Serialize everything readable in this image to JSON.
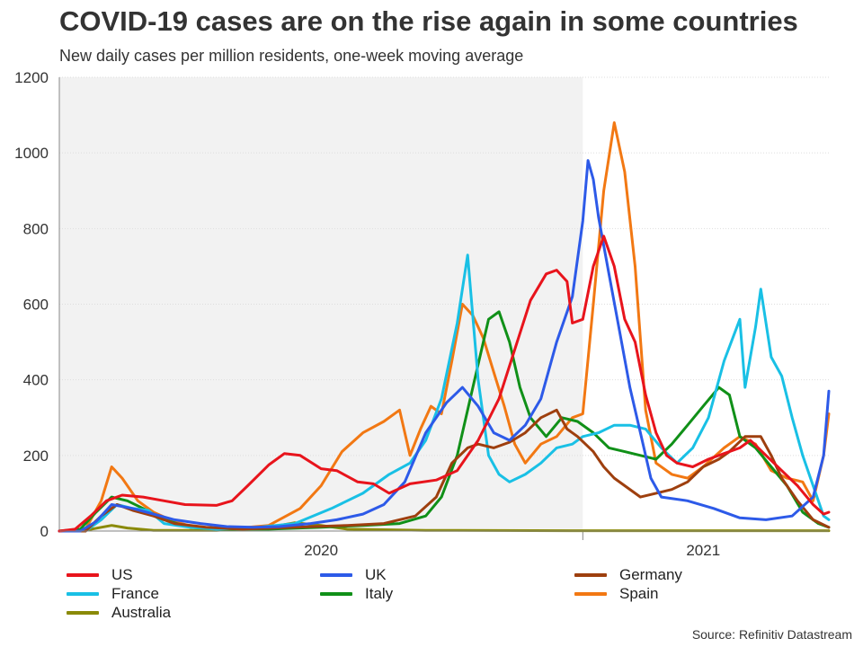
{
  "title": "COVID-19 cases are on the rise again in some countries",
  "subtitle": "New daily cases per million residents, one-week moving average",
  "source": "Source: Refinitiv Datastream",
  "chart_data": {
    "type": "line",
    "title": "COVID-19 cases are on the rise again in some countries",
    "subtitle": "New daily cases per million residents, one-week moving average",
    "ylabel": "",
    "xlabel": "",
    "ylim": [
      0,
      1200
    ],
    "yticks": [
      0,
      200,
      400,
      600,
      800,
      1000,
      1200
    ],
    "ytick_labels": [
      "0",
      "200",
      "400",
      "600",
      "800",
      "1000",
      "1200"
    ],
    "xlim": [
      2020.0,
      2021.47
    ],
    "xtick_labels": [
      {
        "label": "2020",
        "x": 2020.5
      },
      {
        "label": "2021",
        "x": 2021.23
      }
    ],
    "year_boundary_x": 2021.0,
    "shaded_region": [
      2020.0,
      2021.0
    ],
    "legend_position": "bottom",
    "series": [
      {
        "name": "US",
        "color": "#e8141c",
        "points": [
          [
            2020.0,
            0
          ],
          [
            2020.03,
            5
          ],
          [
            2020.06,
            40
          ],
          [
            2020.09,
            80
          ],
          [
            2020.12,
            95
          ],
          [
            2020.16,
            90
          ],
          [
            2020.2,
            80
          ],
          [
            2020.24,
            70
          ],
          [
            2020.3,
            68
          ],
          [
            2020.33,
            80
          ],
          [
            2020.36,
            120
          ],
          [
            2020.4,
            175
          ],
          [
            2020.43,
            205
          ],
          [
            2020.46,
            200
          ],
          [
            2020.5,
            165
          ],
          [
            2020.53,
            160
          ],
          [
            2020.57,
            130
          ],
          [
            2020.6,
            125
          ],
          [
            2020.63,
            100
          ],
          [
            2020.67,
            125
          ],
          [
            2020.72,
            135
          ],
          [
            2020.76,
            160
          ],
          [
            2020.8,
            240
          ],
          [
            2020.84,
            350
          ],
          [
            2020.87,
            480
          ],
          [
            2020.9,
            610
          ],
          [
            2020.93,
            680
          ],
          [
            2020.95,
            690
          ],
          [
            2020.97,
            660
          ],
          [
            2020.98,
            550
          ],
          [
            2021.0,
            560
          ],
          [
            2021.02,
            700
          ],
          [
            2021.04,
            780
          ],
          [
            2021.06,
            700
          ],
          [
            2021.08,
            560
          ],
          [
            2021.1,
            500
          ],
          [
            2021.12,
            360
          ],
          [
            2021.14,
            260
          ],
          [
            2021.16,
            200
          ],
          [
            2021.18,
            180
          ],
          [
            2021.21,
            170
          ],
          [
            2021.24,
            190
          ],
          [
            2021.27,
            205
          ],
          [
            2021.3,
            220
          ],
          [
            2021.32,
            240
          ],
          [
            2021.35,
            200
          ],
          [
            2021.38,
            160
          ],
          [
            2021.41,
            120
          ],
          [
            2021.44,
            70
          ],
          [
            2021.46,
            45
          ],
          [
            2021.47,
            50
          ]
        ]
      },
      {
        "name": "UK",
        "color": "#2d5ae8",
        "points": [
          [
            2020.0,
            0
          ],
          [
            2020.04,
            0
          ],
          [
            2020.07,
            25
          ],
          [
            2020.1,
            70
          ],
          [
            2020.14,
            60
          ],
          [
            2020.18,
            45
          ],
          [
            2020.22,
            30
          ],
          [
            2020.27,
            20
          ],
          [
            2020.32,
            12
          ],
          [
            2020.37,
            10
          ],
          [
            2020.42,
            12
          ],
          [
            2020.48,
            20
          ],
          [
            2020.53,
            30
          ],
          [
            2020.58,
            45
          ],
          [
            2020.62,
            70
          ],
          [
            2020.66,
            130
          ],
          [
            2020.7,
            260
          ],
          [
            2020.74,
            340
          ],
          [
            2020.77,
            380
          ],
          [
            2020.8,
            330
          ],
          [
            2020.83,
            260
          ],
          [
            2020.86,
            240
          ],
          [
            2020.89,
            280
          ],
          [
            2020.92,
            350
          ],
          [
            2020.95,
            500
          ],
          [
            2020.98,
            620
          ],
          [
            2021.0,
            820
          ],
          [
            2021.01,
            980
          ],
          [
            2021.02,
            930
          ],
          [
            2021.03,
            830
          ],
          [
            2021.05,
            680
          ],
          [
            2021.07,
            530
          ],
          [
            2021.09,
            380
          ],
          [
            2021.11,
            260
          ],
          [
            2021.13,
            140
          ],
          [
            2021.15,
            90
          ],
          [
            2021.2,
            80
          ],
          [
            2021.25,
            60
          ],
          [
            2021.3,
            35
          ],
          [
            2021.35,
            30
          ],
          [
            2021.4,
            40
          ],
          [
            2021.44,
            90
          ],
          [
            2021.46,
            200
          ],
          [
            2021.47,
            370
          ]
        ]
      },
      {
        "name": "Germany",
        "color": "#9e3f0e",
        "points": [
          [
            2020.0,
            0
          ],
          [
            2020.05,
            0
          ],
          [
            2020.08,
            40
          ],
          [
            2020.11,
            70
          ],
          [
            2020.14,
            55
          ],
          [
            2020.18,
            40
          ],
          [
            2020.22,
            20
          ],
          [
            2020.28,
            10
          ],
          [
            2020.35,
            5
          ],
          [
            2020.45,
            10
          ],
          [
            2020.55,
            15
          ],
          [
            2020.62,
            20
          ],
          [
            2020.68,
            40
          ],
          [
            2020.72,
            90
          ],
          [
            2020.75,
            180
          ],
          [
            2020.78,
            220
          ],
          [
            2020.8,
            230
          ],
          [
            2020.83,
            220
          ],
          [
            2020.86,
            235
          ],
          [
            2020.89,
            260
          ],
          [
            2020.92,
            300
          ],
          [
            2020.95,
            320
          ],
          [
            2020.97,
            270
          ],
          [
            2020.99,
            250
          ],
          [
            2021.02,
            210
          ],
          [
            2021.04,
            170
          ],
          [
            2021.06,
            140
          ],
          [
            2021.08,
            120
          ],
          [
            2021.11,
            90
          ],
          [
            2021.14,
            100
          ],
          [
            2021.17,
            110
          ],
          [
            2021.2,
            130
          ],
          [
            2021.23,
            170
          ],
          [
            2021.26,
            190
          ],
          [
            2021.28,
            210
          ],
          [
            2021.31,
            250
          ],
          [
            2021.34,
            250
          ],
          [
            2021.36,
            200
          ],
          [
            2021.38,
            140
          ],
          [
            2021.41,
            80
          ],
          [
            2021.44,
            30
          ],
          [
            2021.47,
            10
          ]
        ]
      },
      {
        "name": "France",
        "color": "#19c0e5",
        "points": [
          [
            2020.0,
            0
          ],
          [
            2020.05,
            0
          ],
          [
            2020.08,
            30
          ],
          [
            2020.11,
            70
          ],
          [
            2020.14,
            60
          ],
          [
            2020.17,
            55
          ],
          [
            2020.2,
            20
          ],
          [
            2020.25,
            10
          ],
          [
            2020.3,
            5
          ],
          [
            2020.38,
            10
          ],
          [
            2020.45,
            20
          ],
          [
            2020.52,
            60
          ],
          [
            2020.58,
            100
          ],
          [
            2020.63,
            150
          ],
          [
            2020.67,
            180
          ],
          [
            2020.7,
            240
          ],
          [
            2020.73,
            350
          ],
          [
            2020.76,
            550
          ],
          [
            2020.78,
            730
          ],
          [
            2020.8,
            400
          ],
          [
            2020.82,
            200
          ],
          [
            2020.84,
            150
          ],
          [
            2020.86,
            130
          ],
          [
            2020.89,
            150
          ],
          [
            2020.92,
            180
          ],
          [
            2020.95,
            220
          ],
          [
            2020.98,
            230
          ],
          [
            2021.0,
            250
          ],
          [
            2021.03,
            260
          ],
          [
            2021.06,
            280
          ],
          [
            2021.09,
            280
          ],
          [
            2021.12,
            270
          ],
          [
            2021.15,
            220
          ],
          [
            2021.18,
            180
          ],
          [
            2021.21,
            220
          ],
          [
            2021.24,
            300
          ],
          [
            2021.27,
            450
          ],
          [
            2021.3,
            560
          ],
          [
            2021.31,
            380
          ],
          [
            2021.33,
            540
          ],
          [
            2021.34,
            640
          ],
          [
            2021.36,
            460
          ],
          [
            2021.38,
            410
          ],
          [
            2021.4,
            300
          ],
          [
            2021.42,
            200
          ],
          [
            2021.44,
            120
          ],
          [
            2021.46,
            40
          ],
          [
            2021.47,
            30
          ]
        ]
      },
      {
        "name": "Italy",
        "color": "#109018",
        "points": [
          [
            2020.0,
            0
          ],
          [
            2020.04,
            5
          ],
          [
            2020.07,
            50
          ],
          [
            2020.1,
            90
          ],
          [
            2020.13,
            80
          ],
          [
            2020.16,
            60
          ],
          [
            2020.2,
            30
          ],
          [
            2020.25,
            10
          ],
          [
            2020.3,
            5
          ],
          [
            2020.4,
            5
          ],
          [
            2020.5,
            10
          ],
          [
            2020.58,
            15
          ],
          [
            2020.65,
            20
          ],
          [
            2020.7,
            40
          ],
          [
            2020.73,
            90
          ],
          [
            2020.76,
            200
          ],
          [
            2020.79,
            380
          ],
          [
            2020.82,
            560
          ],
          [
            2020.84,
            580
          ],
          [
            2020.86,
            500
          ],
          [
            2020.88,
            380
          ],
          [
            2020.9,
            300
          ],
          [
            2020.93,
            250
          ],
          [
            2020.96,
            300
          ],
          [
            2020.99,
            290
          ],
          [
            2021.02,
            260
          ],
          [
            2021.05,
            220
          ],
          [
            2021.08,
            210
          ],
          [
            2021.11,
            200
          ],
          [
            2021.14,
            190
          ],
          [
            2021.17,
            230
          ],
          [
            2021.2,
            280
          ],
          [
            2021.23,
            330
          ],
          [
            2021.26,
            380
          ],
          [
            2021.28,
            360
          ],
          [
            2021.3,
            250
          ],
          [
            2021.33,
            220
          ],
          [
            2021.36,
            170
          ],
          [
            2021.39,
            120
          ],
          [
            2021.42,
            50
          ],
          [
            2021.45,
            20
          ],
          [
            2021.47,
            10
          ]
        ]
      },
      {
        "name": "Spain",
        "color": "#f27813",
        "points": [
          [
            2020.0,
            0
          ],
          [
            2020.05,
            5
          ],
          [
            2020.08,
            80
          ],
          [
            2020.1,
            170
          ],
          [
            2020.12,
            140
          ],
          [
            2020.15,
            80
          ],
          [
            2020.18,
            50
          ],
          [
            2020.22,
            25
          ],
          [
            2020.26,
            10
          ],
          [
            2020.32,
            5
          ],
          [
            2020.4,
            15
          ],
          [
            2020.46,
            60
          ],
          [
            2020.5,
            120
          ],
          [
            2020.54,
            210
          ],
          [
            2020.58,
            260
          ],
          [
            2020.62,
            290
          ],
          [
            2020.65,
            320
          ],
          [
            2020.67,
            200
          ],
          [
            2020.69,
            270
          ],
          [
            2020.71,
            330
          ],
          [
            2020.73,
            310
          ],
          [
            2020.75,
            450
          ],
          [
            2020.77,
            600
          ],
          [
            2020.79,
            570
          ],
          [
            2020.81,
            510
          ],
          [
            2020.83,
            420
          ],
          [
            2020.85,
            330
          ],
          [
            2020.87,
            230
          ],
          [
            2020.89,
            180
          ],
          [
            2020.92,
            230
          ],
          [
            2020.95,
            250
          ],
          [
            2020.98,
            300
          ],
          [
            2021.0,
            310
          ],
          [
            2021.02,
            600
          ],
          [
            2021.04,
            900
          ],
          [
            2021.06,
            1080
          ],
          [
            2021.08,
            950
          ],
          [
            2021.1,
            700
          ],
          [
            2021.12,
            320
          ],
          [
            2021.14,
            180
          ],
          [
            2021.17,
            150
          ],
          [
            2021.2,
            140
          ],
          [
            2021.23,
            170
          ],
          [
            2021.27,
            220
          ],
          [
            2021.3,
            250
          ],
          [
            2021.33,
            230
          ],
          [
            2021.36,
            160
          ],
          [
            2021.39,
            140
          ],
          [
            2021.42,
            130
          ],
          [
            2021.44,
            80
          ],
          [
            2021.46,
            200
          ],
          [
            2021.47,
            310
          ]
        ]
      },
      {
        "name": "Australia",
        "color": "#8a8a08",
        "points": [
          [
            2020.0,
            0
          ],
          [
            2020.05,
            2
          ],
          [
            2020.08,
            10
          ],
          [
            2020.1,
            15
          ],
          [
            2020.13,
            8
          ],
          [
            2020.18,
            2
          ],
          [
            2020.3,
            2
          ],
          [
            2020.4,
            10
          ],
          [
            2020.45,
            22
          ],
          [
            2020.5,
            15
          ],
          [
            2020.55,
            5
          ],
          [
            2020.7,
            2
          ],
          [
            2021.0,
            1
          ],
          [
            2021.47,
            1
          ]
        ]
      }
    ]
  }
}
